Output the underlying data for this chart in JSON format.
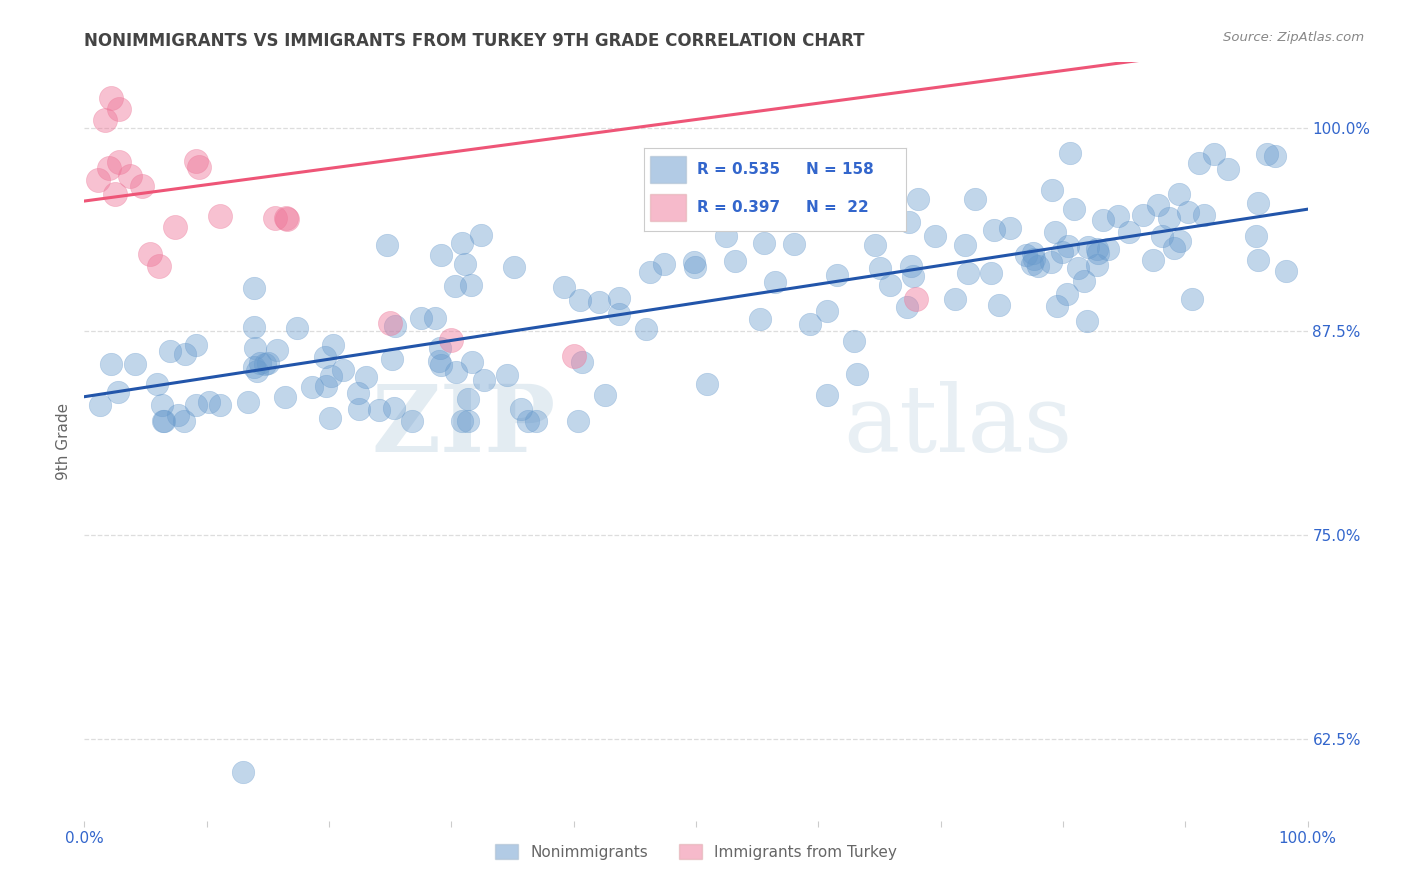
{
  "title": "NONIMMIGRANTS VS IMMIGRANTS FROM TURKEY 9TH GRADE CORRELATION CHART",
  "source_text": "Source: ZipAtlas.com",
  "ylabel": "9th Grade",
  "y_tick_labels": [
    "62.5%",
    "75.0%",
    "87.5%",
    "100.0%"
  ],
  "y_tick_values": [
    0.625,
    0.75,
    0.875,
    1.0
  ],
  "x_range": [
    0.0,
    1.0
  ],
  "y_range": [
    0.575,
    1.04
  ],
  "blue_R": 0.535,
  "blue_N": 158,
  "pink_R": 0.397,
  "pink_N": 22,
  "blue_color": "#6699CC",
  "pink_color": "#EE7799",
  "blue_line_color": "#2255AA",
  "pink_line_color": "#EE5577",
  "legend_label_blue": "Nonimmigrants",
  "legend_label_pink": "Immigrants from Turkey",
  "watermark_zip": "ZIP",
  "watermark_atlas": "atlas",
  "background_color": "#ffffff",
  "title_color": "#444444",
  "axis_label_color": "#666666",
  "tick_label_color": "#3366CC",
  "source_color": "#888888"
}
